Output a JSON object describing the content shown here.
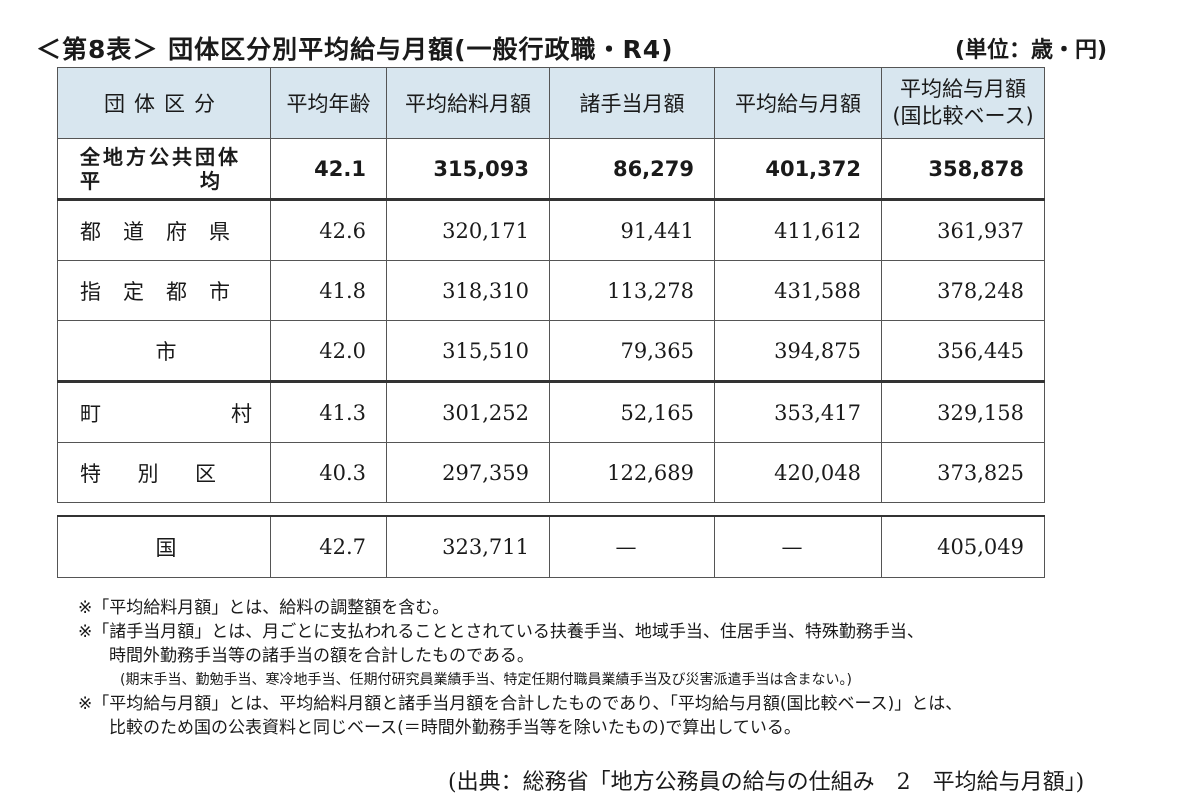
{
  "title": "＜第8表＞ 団体区分別平均給与月額(一般行政職・R4)",
  "unit": "(単位：歳・円)",
  "table": {
    "headers": [
      "団体区分",
      "平均年齢",
      "平均給料月額",
      "諸手当月額",
      "平均給与月額",
      "平均給与月額",
      "(国比較ベース)"
    ],
    "rows": [
      {
        "label_line1": "全地方公共団体",
        "label_line2": "平　　　　　均",
        "age": "42.1",
        "salary": "315,093",
        "allowance": "86,279",
        "total": "401,372",
        "kuni_base": "358,878"
      },
      {
        "label": "都道府県",
        "age": "42.6",
        "salary": "320,171",
        "allowance": "91,441",
        "total": "411,612",
        "kuni_base": "361,937"
      },
      {
        "label": "指定都市",
        "age": "41.8",
        "salary": "318,310",
        "allowance": "113,278",
        "total": "431,588",
        "kuni_base": "378,248"
      },
      {
        "label": "市",
        "age": "42.0",
        "salary": "315,510",
        "allowance": "79,365",
        "total": "394,875",
        "kuni_base": "356,445"
      },
      {
        "label": "町　村",
        "age": "41.3",
        "salary": "301,252",
        "allowance": "52,165",
        "total": "353,417",
        "kuni_base": "329,158"
      },
      {
        "label": "特別区",
        "age": "40.3",
        "salary": "297,359",
        "allowance": "122,689",
        "total": "420,048",
        "kuni_base": "373,825"
      },
      {
        "label": "国",
        "age": "42.7",
        "salary": "323,711",
        "allowance": "—",
        "total": "—",
        "kuni_base": "405,049"
      }
    ]
  },
  "notes": [
    "※「平均給料月額」とは、給料の調整額を含む。",
    "※「諸手当月額」とは、月ごとに支払われることとされている扶養手当、地域手当、住居手当、特殊勤務手当、",
    "時間外勤務手当等の諸手当の額を合計したものである。",
    "(期末手当、勤勉手当、寒冷地手当、任期付研究員業績手当、特定任期付職員業績手当及び災害派遣手当は含まない。)",
    "※「平均給与月額」とは、平均給料月額と諸手当月額を合計したものであり、「平均給与月額(国比較ベース)」とは、",
    "比較のため国の公表資料と同じベース(＝時間外勤務手当等を除いたもの)で算出している。"
  ],
  "source": "(出典：総務省「地方公務員の給与の仕組み　2　平均給与月額」)"
}
